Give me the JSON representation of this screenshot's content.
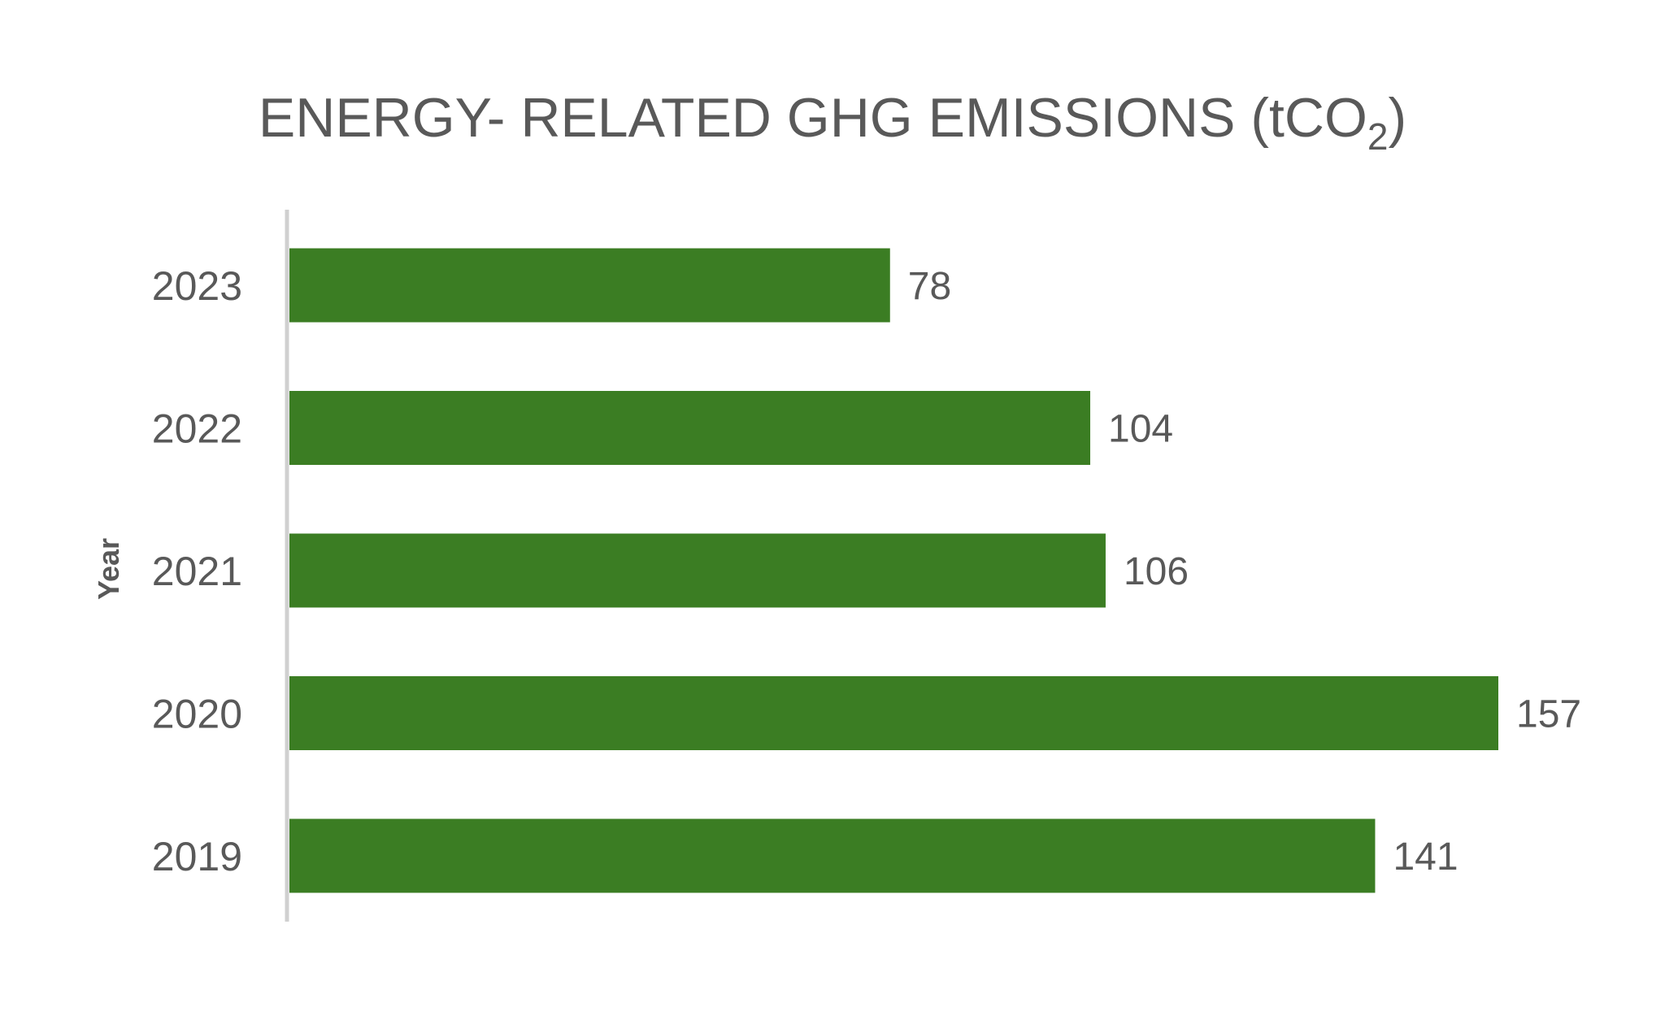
{
  "chart_data": {
    "type": "bar",
    "orientation": "horizontal",
    "title": "ENERGY- RELATED GHG EMISSIONS (tCO",
    "title_subscript": "2",
    "title_suffix": ")",
    "ylabel": "Year",
    "xlabel": "",
    "categories": [
      "2023",
      "2022",
      "2021",
      "2020",
      "2019"
    ],
    "values": [
      78,
      104,
      106,
      157,
      141
    ],
    "xlim": [
      0,
      160
    ],
    "grid": false,
    "legend": "none",
    "bar_color": "#3b7d23",
    "axis_color": "#d0d0d0",
    "text_color": "#595959"
  }
}
